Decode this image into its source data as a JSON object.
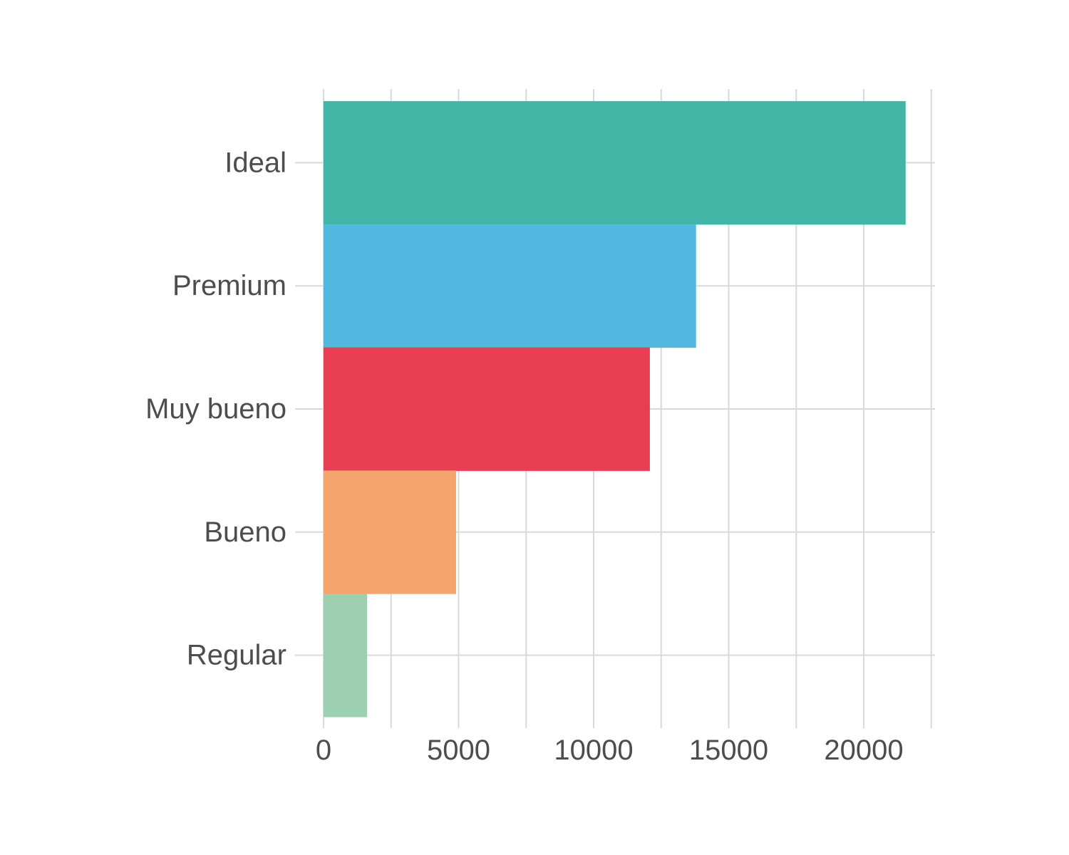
{
  "chart_data": {
    "type": "bar",
    "orientation": "horizontal",
    "categories": [
      "Ideal",
      "Premium",
      "Muy bueno",
      "Bueno",
      "Regular"
    ],
    "values": [
      21551,
      13791,
      12082,
      4906,
      1610
    ],
    "colors": [
      "#42b6a6",
      "#52b8e0",
      "#e83e53",
      "#f4a46c",
      "#9dcfb1"
    ],
    "title": "",
    "xlabel": "",
    "ylabel": "",
    "xlim": [
      0,
      22600
    ],
    "xticks": [
      0,
      5000,
      10000,
      15000,
      20000
    ],
    "xtick_labels": [
      "0",
      "5000",
      "10000",
      "15000",
      "20000"
    ],
    "minor_xticks": [
      2500,
      7500,
      12500,
      17500,
      22500
    ],
    "grid": true,
    "legend": "none"
  }
}
